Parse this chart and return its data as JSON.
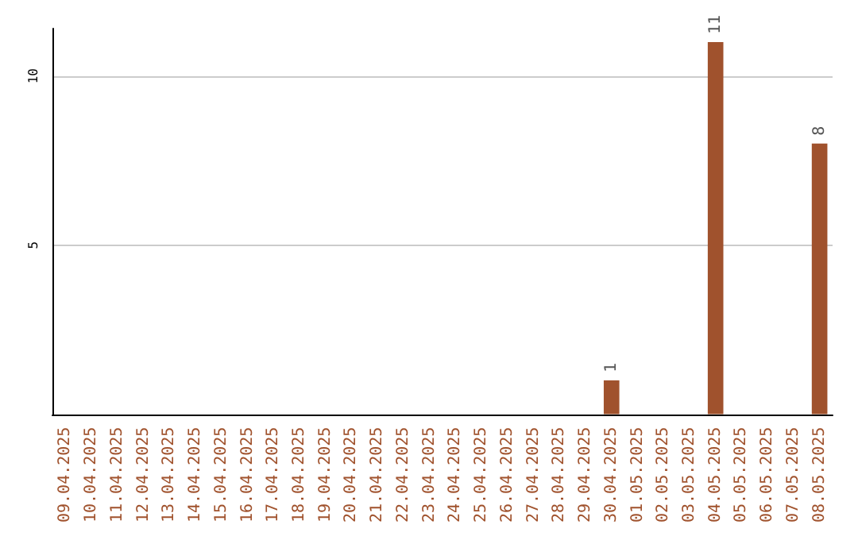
{
  "chart_data": {
    "type": "bar",
    "categories": [
      "09.04.2025",
      "10.04.2025",
      "11.04.2025",
      "12.04.2025",
      "13.04.2025",
      "14.04.2025",
      "15.04.2025",
      "16.04.2025",
      "17.04.2025",
      "18.04.2025",
      "19.04.2025",
      "20.04.2025",
      "21.04.2025",
      "22.04.2025",
      "23.04.2025",
      "24.04.2025",
      "25.04.2025",
      "26.04.2025",
      "27.04.2025",
      "28.04.2025",
      "29.04.2025",
      "30.04.2025",
      "01.05.2025",
      "02.05.2025",
      "03.05.2025",
      "04.05.2025",
      "05.05.2025",
      "06.05.2025",
      "07.05.2025",
      "08.05.2025"
    ],
    "values": [
      0,
      0,
      0,
      0,
      0,
      0,
      0,
      0,
      0,
      0,
      0,
      0,
      0,
      0,
      0,
      0,
      0,
      0,
      0,
      0,
      0,
      1,
      0,
      0,
      0,
      11,
      0,
      0,
      0,
      8
    ],
    "value_labels": [
      null,
      null,
      null,
      null,
      null,
      null,
      null,
      null,
      null,
      null,
      null,
      null,
      null,
      null,
      null,
      null,
      null,
      null,
      null,
      null,
      null,
      "1",
      null,
      null,
      null,
      "11",
      null,
      null,
      null,
      "8"
    ],
    "color": "#a0522d",
    "ylim": [
      0,
      11.4
    ],
    "yticks": [
      5,
      10
    ],
    "grid": "y"
  }
}
